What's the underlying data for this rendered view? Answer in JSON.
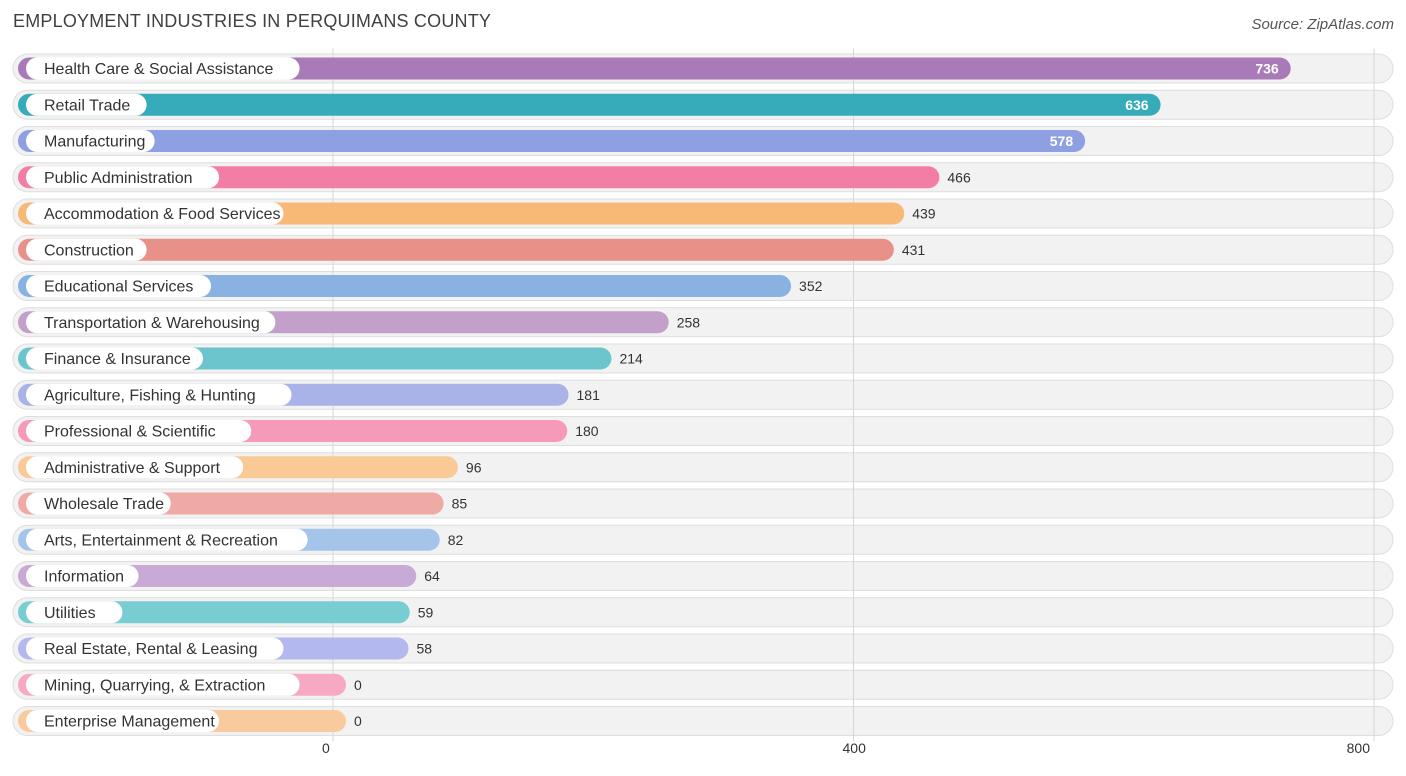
{
  "chart_data": {
    "type": "bar",
    "orientation": "horizontal",
    "title": "EMPLOYMENT INDUSTRIES IN PERQUIMANS COUNTY",
    "source": "Source: ZipAtlas.com",
    "xlabel": "",
    "ylabel": "",
    "xlim": [
      0,
      800
    ],
    "xticks": [
      0,
      400,
      800
    ],
    "grid": true,
    "categories": [
      "Health Care & Social Assistance",
      "Retail Trade",
      "Manufacturing",
      "Public Administration",
      "Accommodation & Food Services",
      "Construction",
      "Educational Services",
      "Transportation & Warehousing",
      "Finance & Insurance",
      "Agriculture, Fishing & Hunting",
      "Professional & Scientific",
      "Administrative & Support",
      "Wholesale Trade",
      "Arts, Entertainment & Recreation",
      "Information",
      "Utilities",
      "Real Estate, Rental & Leasing",
      "Mining, Quarrying, & Extraction",
      "Enterprise Management"
    ],
    "values": [
      736,
      636,
      578,
      466,
      439,
      431,
      352,
      258,
      214,
      181,
      180,
      96,
      85,
      82,
      64,
      59,
      58,
      0,
      0
    ],
    "colors": [
      "#a87bb8",
      "#36abb9",
      "#8fa0e2",
      "#f27ea5",
      "#f8b876",
      "#e89189",
      "#89b2e3",
      "#c3a0ca",
      "#6cc4cc",
      "#a9b3e8",
      "#f59ab8",
      "#f9c996",
      "#f0aaa6",
      "#a4c4ea",
      "#c9aad6",
      "#78cdd3",
      "#b3b9ee",
      "#f7a9c3",
      "#f9ca9e"
    ]
  }
}
